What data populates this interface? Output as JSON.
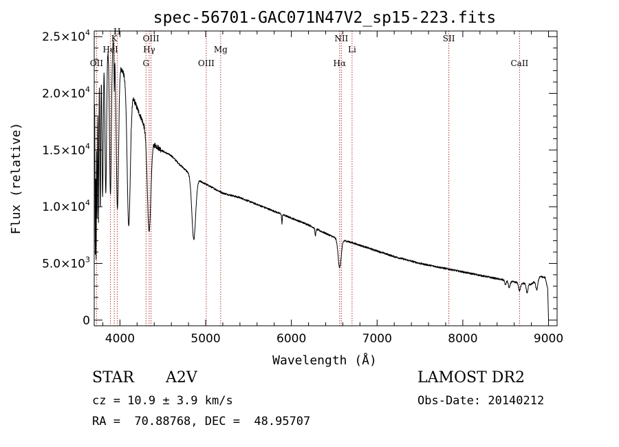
{
  "chart_data": {
    "type": "line",
    "title": "spec-56701-GAC071N47V2_sp15-223.fits",
    "xlabel": "Wavelength (Å)",
    "ylabel": "Flux (relative)",
    "xlim": [
      3700,
      9100
    ],
    "ylim": [
      -500,
      25500
    ],
    "x_ticks": [
      {
        "v": 4000,
        "label": "4000"
      },
      {
        "v": 5000,
        "label": "5000"
      },
      {
        "v": 6000,
        "label": "6000"
      },
      {
        "v": 7000,
        "label": "7000"
      },
      {
        "v": 8000,
        "label": "8000"
      },
      {
        "v": 9000,
        "label": "9000"
      }
    ],
    "y_ticks": [
      {
        "v": 0,
        "mant": "0",
        "exp": ""
      },
      {
        "v": 5000,
        "mant": "5.0×10",
        "exp": "3"
      },
      {
        "v": 10000,
        "mant": "1.0×10",
        "exp": "4"
      },
      {
        "v": 15000,
        "mant": "1.5×10",
        "exp": "4"
      },
      {
        "v": 20000,
        "mant": "2.0×10",
        "exp": "4"
      },
      {
        "v": 25000,
        "mant": "2.5×10",
        "exp": "4"
      }
    ],
    "grid": false,
    "line_color": "#000000",
    "marker_color": "#b03030",
    "spectral_lines": [
      {
        "label": "OII",
        "x": 3727,
        "row": 3
      },
      {
        "label": "HeI",
        "x": 3889,
        "row": 2
      },
      {
        "label": "K",
        "x": 3934,
        "row": 1
      },
      {
        "label": "H",
        "x": 3968,
        "row": 0
      },
      {
        "label": "G",
        "x": 4304,
        "row": 3
      },
      {
        "label": "Hγ",
        "x": 4341,
        "row": 2
      },
      {
        "label": "OIII",
        "x": 4363,
        "row": 1
      },
      {
        "label": "OIII",
        "x": 5007,
        "row": 3
      },
      {
        "label": "Mg",
        "x": 5175,
        "row": 2
      },
      {
        "label": "Hα",
        "x": 6563,
        "row": 3
      },
      {
        "label": "NII",
        "x": 6583,
        "row": 1
      },
      {
        "label": "Li",
        "x": 6708,
        "row": 2
      },
      {
        "label": "SII",
        "x": 7837,
        "row": 1
      },
      {
        "label": "CaII",
        "x": 8662,
        "row": 3
      }
    ],
    "continuum": [
      [
        3700,
        19000
      ],
      [
        3720,
        20500
      ],
      [
        3760,
        22000
      ],
      [
        3800,
        23000
      ],
      [
        3840,
        23800
      ],
      [
        3880,
        24500
      ],
      [
        3920,
        24700
      ],
      [
        3960,
        24300
      ],
      [
        4000,
        22500
      ],
      [
        4040,
        21800
      ],
      [
        4080,
        21000
      ],
      [
        4120,
        19800
      ],
      [
        4160,
        19500
      ],
      [
        4200,
        18700
      ],
      [
        4250,
        17800
      ],
      [
        4300,
        16800
      ],
      [
        4360,
        16000
      ],
      [
        4400,
        15500
      ],
      [
        4500,
        14900
      ],
      [
        4600,
        14500
      ],
      [
        4700,
        13700
      ],
      [
        4800,
        13000
      ],
      [
        4900,
        12400
      ],
      [
        5000,
        12000
      ],
      [
        5100,
        11600
      ],
      [
        5200,
        11200
      ],
      [
        5300,
        11000
      ],
      [
        5400,
        10800
      ],
      [
        5500,
        10500
      ],
      [
        5600,
        10200
      ],
      [
        5700,
        9900
      ],
      [
        5800,
        9600
      ],
      [
        5900,
        9300
      ],
      [
        6000,
        9000
      ],
      [
        6100,
        8700
      ],
      [
        6200,
        8400
      ],
      [
        6300,
        8000
      ],
      [
        6400,
        7650
      ],
      [
        6500,
        7300
      ],
      [
        6600,
        7050
      ],
      [
        6700,
        6850
      ],
      [
        6800,
        6600
      ],
      [
        6900,
        6350
      ],
      [
        7000,
        6100
      ],
      [
        7100,
        5850
      ],
      [
        7200,
        5600
      ],
      [
        7300,
        5400
      ],
      [
        7400,
        5200
      ],
      [
        7500,
        5000
      ],
      [
        7600,
        4850
      ],
      [
        7700,
        4700
      ],
      [
        7800,
        4550
      ],
      [
        7900,
        4400
      ],
      [
        8000,
        4250
      ],
      [
        8100,
        4100
      ],
      [
        8200,
        3950
      ],
      [
        8300,
        3800
      ],
      [
        8400,
        3650
      ],
      [
        8500,
        3500
      ],
      [
        8600,
        3350
      ],
      [
        8700,
        3250
      ],
      [
        8800,
        3150
      ],
      [
        8900,
        3850
      ],
      [
        8960,
        3750
      ],
      [
        8990,
        2800
      ],
      [
        9000,
        0
      ]
    ],
    "absorption": [
      {
        "x": 3712,
        "depth": 14000,
        "width": 3
      },
      {
        "x": 3722,
        "depth": 15000,
        "width": 3
      },
      {
        "x": 3734,
        "depth": 12000,
        "width": 4
      },
      {
        "x": 3750,
        "depth": 13000,
        "width": 4
      },
      {
        "x": 3771,
        "depth": 12500,
        "width": 5
      },
      {
        "x": 3798,
        "depth": 12000,
        "width": 7
      },
      {
        "x": 3835,
        "depth": 12500,
        "width": 9
      },
      {
        "x": 3889,
        "depth": 13500,
        "width": 11
      },
      {
        "x": 3934,
        "depth": 4000,
        "width": 3
      },
      {
        "x": 3970,
        "depth": 14000,
        "width": 14
      },
      {
        "x": 4102,
        "depth": 12000,
        "width": 18
      },
      {
        "x": 4340,
        "depth": 8500,
        "width": 20
      },
      {
        "x": 4861,
        "depth": 5500,
        "width": 22
      },
      {
        "x": 5890,
        "depth": 800,
        "width": 4
      },
      {
        "x": 6280,
        "depth": 600,
        "width": 6
      },
      {
        "x": 6563,
        "depth": 2500,
        "width": 18
      },
      {
        "x": 8498,
        "depth": 400,
        "width": 8
      },
      {
        "x": 8542,
        "depth": 600,
        "width": 10
      },
      {
        "x": 8662,
        "depth": 700,
        "width": 11
      },
      {
        "x": 8750,
        "depth": 800,
        "width": 10
      },
      {
        "x": 8863,
        "depth": 900,
        "width": 12
      }
    ]
  },
  "info": {
    "object_class": "STAR",
    "subclass": "A2V",
    "survey": "LAMOST DR2",
    "cz": "cz = 10.9 ± 3.9 km/s",
    "obs_date": "Obs-Date: 20140212",
    "coords": "RA =  70.88768, DEC =  48.95707"
  }
}
